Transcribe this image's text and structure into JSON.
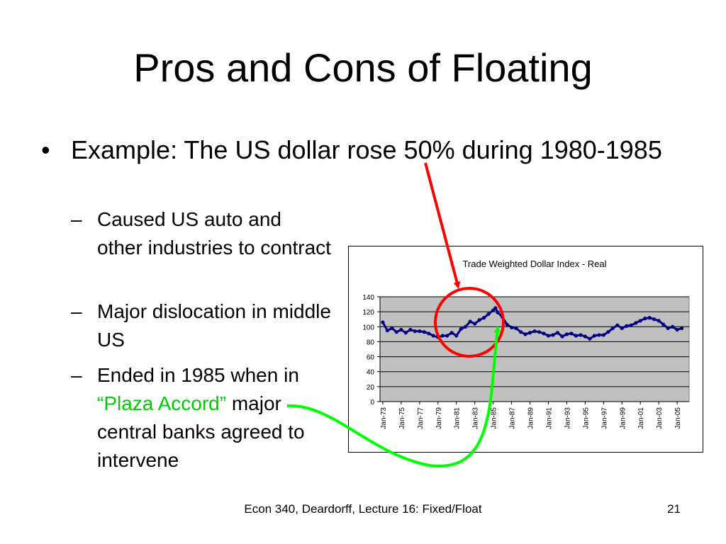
{
  "slide": {
    "title": "Pros and Cons of Floating",
    "bullet": "Example:  The US dollar rose 50% during 1980-1985",
    "sub_items": [
      {
        "text": "Caused US auto and other industries to contract"
      },
      {
        "text": "Major dislocation in middle US"
      },
      {
        "pre": "Ended in 1985 when in ",
        "highlight": "“Plaza Accord”",
        "post": " major central banks agreed to intervene"
      }
    ],
    "dash": "–",
    "bullet_dot": "•",
    "footer": "Econ 340, Deardorff, Lecture 16: Fixed/Float",
    "page_number": "21"
  },
  "colors": {
    "series": "#000080",
    "plot_bg": "#c0c0c0",
    "circle": "#ff0000",
    "red_arrow": "#ff0000",
    "green_arrow": "#00ff00",
    "accent_text": "#00cc00"
  },
  "chart_data": {
    "type": "line",
    "title": "Trade Weighted Dollar Index - Real",
    "xlabel": "",
    "ylabel": "",
    "ylim": [
      0,
      140
    ],
    "yticks": [
      "0",
      "20",
      "40",
      "60",
      "80",
      "100",
      "120",
      "140"
    ],
    "xtick_labels": [
      "Jan-73",
      "Jan-75",
      "Jan-77",
      "Jan-79",
      "Jan-81",
      "Jan-83",
      "Jan-85",
      "Jan-87",
      "Jan-89",
      "Jan-91",
      "Jan-93",
      "Jan-95",
      "Jan-97",
      "Jan-99",
      "Jan-01",
      "Jan-03",
      "Jan-05"
    ],
    "grid": true,
    "legend": "none",
    "series": [
      {
        "x": [
          1973.0,
          1973.5,
          1974.0,
          1974.5,
          1975.0,
          1975.5,
          1976.0,
          1976.5,
          1977.0,
          1977.5,
          1978.0,
          1978.5,
          1979.0,
          1979.5,
          1980.0,
          1980.5,
          1981.0,
          1981.5,
          1982.0,
          1982.5,
          1983.0,
          1983.5,
          1984.0,
          1984.5,
          1985.0,
          1985.25,
          1985.5,
          1986.0,
          1986.5,
          1987.0,
          1987.5,
          1988.0,
          1988.5,
          1989.0,
          1989.5,
          1990.0,
          1990.5,
          1991.0,
          1991.5,
          1992.0,
          1992.5,
          1993.0,
          1993.5,
          1994.0,
          1994.5,
          1995.0,
          1995.5,
          1996.0,
          1996.5,
          1997.0,
          1997.5,
          1998.0,
          1998.5,
          1999.0,
          1999.5,
          2000.0,
          2000.5,
          2001.0,
          2001.5,
          2002.0,
          2002.5,
          2003.0,
          2003.5,
          2004.0,
          2004.5,
          2005.0,
          2005.5
        ],
        "y": [
          106,
          95,
          98,
          93,
          96,
          92,
          96,
          94,
          94,
          93,
          91,
          88,
          86,
          88,
          88,
          92,
          88,
          97,
          100,
          107,
          104,
          109,
          112,
          117,
          122,
          125,
          119,
          113,
          103,
          99,
          98,
          93,
          90,
          92,
          94,
          93,
          91,
          88,
          89,
          92,
          87,
          90,
          91,
          88,
          89,
          87,
          84,
          88,
          89,
          89,
          93,
          98,
          102,
          98,
          101,
          102,
          105,
          108,
          111,
          112,
          110,
          108,
          103,
          98,
          100,
          96,
          98
        ]
      }
    ]
  }
}
